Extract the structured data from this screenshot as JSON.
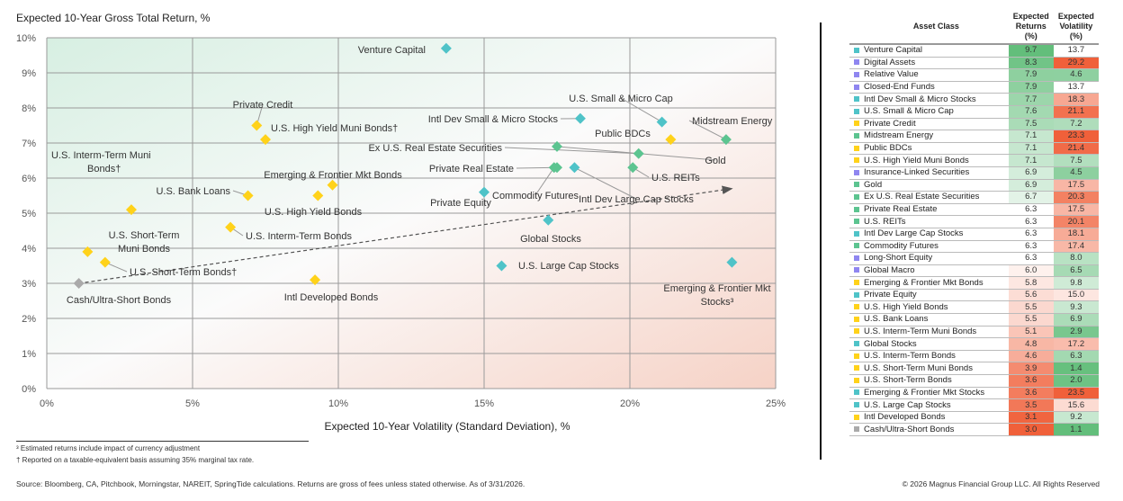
{
  "chart_data": {
    "type": "scatter",
    "title": "Expected 10-Year Gross Total Return, %",
    "xlabel": "Expected 10-Year Volatility (Standard Deviation), %",
    "ylabel": "",
    "xlim": [
      0,
      25
    ],
    "ylim": [
      0,
      10
    ],
    "x_ticks": [
      "0%",
      "5%",
      "10%",
      "15%",
      "20%",
      "25%"
    ],
    "y_ticks": [
      "0%",
      "1%",
      "2%",
      "3%",
      "4%",
      "5%",
      "6%",
      "7%",
      "8%",
      "9%",
      "10%"
    ],
    "grid": true,
    "trend_arrow": {
      "from": [
        1.1,
        3.0
      ],
      "to": [
        23.5,
        5.7
      ]
    },
    "points": [
      {
        "label": "Venture Capital",
        "x": 13.7,
        "y": 9.7,
        "group": "equity"
      },
      {
        "label": "Private Credit",
        "x": 7.2,
        "y": 7.5,
        "group": "fixed"
      },
      {
        "label": "U.S. High Yield Muni Bonds†",
        "x": 7.5,
        "y": 7.1,
        "group": "fixed"
      },
      {
        "label": "Intl Dev Small & Micro Stocks",
        "x": 18.3,
        "y": 7.7,
        "group": "equity"
      },
      {
        "label": "U.S. Small & Micro Cap",
        "x": 21.1,
        "y": 7.6,
        "group": "equity"
      },
      {
        "label": "Midstream Energy",
        "x": 23.3,
        "y": 7.1,
        "group": "real"
      },
      {
        "label": "Public BDCs",
        "x": 21.4,
        "y": 7.1,
        "group": "fixed"
      },
      {
        "label": "Gold",
        "x": 17.5,
        "y": 6.9,
        "group": "real"
      },
      {
        "label": "Ex U.S. Real Estate Securities",
        "x": 20.3,
        "y": 6.7,
        "group": "real"
      },
      {
        "label": "Private Real Estate",
        "x": 17.5,
        "y": 6.3,
        "group": "real"
      },
      {
        "label": "Commodity Futures",
        "x": 17.4,
        "y": 6.3,
        "group": "real"
      },
      {
        "label": "Intl Dev Large Cap Stocks",
        "x": 18.1,
        "y": 6.3,
        "group": "equity"
      },
      {
        "label": "U.S. REITs",
        "x": 20.1,
        "y": 6.3,
        "group": "real"
      },
      {
        "label": "Private Equity",
        "x": 15.0,
        "y": 5.6,
        "group": "equity"
      },
      {
        "label": "Emerging & Frontier Mkt Bonds",
        "x": 9.8,
        "y": 5.8,
        "group": "fixed"
      },
      {
        "label": "U.S. High Yield Bonds",
        "x": 9.3,
        "y": 5.5,
        "group": "fixed"
      },
      {
        "label": "U.S. Bank Loans",
        "x": 6.9,
        "y": 5.5,
        "group": "fixed"
      },
      {
        "label": "U.S. Interm-Term Muni Bonds†",
        "x": 2.9,
        "y": 5.1,
        "group": "fixed"
      },
      {
        "label": "Global Stocks",
        "x": 17.2,
        "y": 4.8,
        "group": "equity"
      },
      {
        "label": "U.S. Interm-Term Bonds",
        "x": 6.3,
        "y": 4.6,
        "group": "fixed"
      },
      {
        "label": "U.S. Short-Term Muni Bonds",
        "x": 1.4,
        "y": 3.9,
        "group": "fixed"
      },
      {
        "label": "U.S. Short-Term Bonds†",
        "x": 2.0,
        "y": 3.6,
        "group": "fixed"
      },
      {
        "label": "Emerging & Frontier Mkt Stocks³",
        "x": 23.5,
        "y": 3.6,
        "group": "equity"
      },
      {
        "label": "U.S. Large Cap Stocks",
        "x": 15.6,
        "y": 3.5,
        "group": "equity"
      },
      {
        "label": "Intl Developed Bonds",
        "x": 9.2,
        "y": 3.1,
        "group": "fixed"
      },
      {
        "label": "Cash/Ultra-Short Bonds",
        "x": 1.1,
        "y": 3.0,
        "group": "cash"
      }
    ]
  },
  "colors": {
    "equity": "#4fc3c8",
    "alternative": "#8f86f0",
    "fixed": "#ffd21a",
    "real": "#5cc490",
    "cash": "#aaaaaa",
    "grid": "#9a9a9a",
    "high": "#63be7b",
    "low": "#f0603a"
  },
  "table": {
    "headers": {
      "asset_class": "Asset Class",
      "returns": "Expected Returns (%)",
      "volatility": "Expected Volatility (%)"
    },
    "rows": [
      {
        "name": "Venture Capital",
        "group": "equity",
        "ret": 9.7,
        "vol": 13.7
      },
      {
        "name": "Digital Assets",
        "group": "alternative",
        "ret": 8.3,
        "vol": 29.2
      },
      {
        "name": "Relative Value",
        "group": "alternative",
        "ret": 7.9,
        "vol": 4.6
      },
      {
        "name": "Closed-End Funds",
        "group": "alternative",
        "ret": 7.9,
        "vol": 13.7
      },
      {
        "name": "Intl Dev Small & Micro Stocks",
        "group": "equity",
        "ret": 7.7,
        "vol": 18.3
      },
      {
        "name": "U.S. Small & Micro Cap",
        "group": "equity",
        "ret": 7.6,
        "vol": 21.1
      },
      {
        "name": "Private Credit",
        "group": "fixed",
        "ret": 7.5,
        "vol": 7.2
      },
      {
        "name": "Midstream Energy",
        "group": "real",
        "ret": 7.1,
        "vol": 23.3
      },
      {
        "name": "Public BDCs",
        "group": "fixed",
        "ret": 7.1,
        "vol": 21.4
      },
      {
        "name": "U.S. High Yield Muni Bonds",
        "group": "fixed",
        "ret": 7.1,
        "vol": 7.5
      },
      {
        "name": "Insurance-Linked Securities",
        "group": "alternative",
        "ret": 6.9,
        "vol": 4.5
      },
      {
        "name": "Gold",
        "group": "real",
        "ret": 6.9,
        "vol": 17.5
      },
      {
        "name": "Ex U.S. Real Estate Securities",
        "group": "real",
        "ret": 6.7,
        "vol": 20.3
      },
      {
        "name": "Private Real Estate",
        "group": "real",
        "ret": 6.3,
        "vol": 17.5
      },
      {
        "name": "U.S. REITs",
        "group": "real",
        "ret": 6.3,
        "vol": 20.1
      },
      {
        "name": "Intl Dev Large Cap Stocks",
        "group": "equity",
        "ret": 6.3,
        "vol": 18.1
      },
      {
        "name": "Commodity Futures",
        "group": "real",
        "ret": 6.3,
        "vol": 17.4
      },
      {
        "name": "Long-Short Equity",
        "group": "alternative",
        "ret": 6.3,
        "vol": 8.0
      },
      {
        "name": "Global Macro",
        "group": "alternative",
        "ret": 6.0,
        "vol": 6.5
      },
      {
        "name": "Emerging & Frontier Mkt Bonds",
        "group": "fixed",
        "ret": 5.8,
        "vol": 9.8
      },
      {
        "name": "Private Equity",
        "group": "equity",
        "ret": 5.6,
        "vol": 15.0
      },
      {
        "name": "U.S. High Yield Bonds",
        "group": "fixed",
        "ret": 5.5,
        "vol": 9.3
      },
      {
        "name": "U.S. Bank Loans",
        "group": "fixed",
        "ret": 5.5,
        "vol": 6.9
      },
      {
        "name": "U.S. Interm-Term Muni Bonds",
        "group": "fixed",
        "ret": 5.1,
        "vol": 2.9
      },
      {
        "name": "Global Stocks",
        "group": "equity",
        "ret": 4.8,
        "vol": 17.2
      },
      {
        "name": "U.S. Interm-Term Bonds",
        "group": "fixed",
        "ret": 4.6,
        "vol": 6.3
      },
      {
        "name": "U.S. Short-Term Muni Bonds",
        "group": "fixed",
        "ret": 3.9,
        "vol": 1.4
      },
      {
        "name": "U.S. Short-Term Bonds",
        "group": "fixed",
        "ret": 3.6,
        "vol": 2.0
      },
      {
        "name": "Emerging & Frontier Mkt Stocks",
        "group": "equity",
        "ret": 3.6,
        "vol": 23.5
      },
      {
        "name": "U.S. Large Cap Stocks",
        "group": "equity",
        "ret": 3.5,
        "vol": 15.6
      },
      {
        "name": "Intl Developed Bonds",
        "group": "fixed",
        "ret": 3.1,
        "vol": 9.2
      },
      {
        "name": "Cash/Ultra-Short Bonds",
        "group": "cash",
        "ret": 3.0,
        "vol": 1.1
      }
    ]
  },
  "footnotes": {
    "note1": "³ Estimated returns include impact of currency adjustment",
    "note2": "† Reported on a taxable-equivalent basis assuming 35% marginal tax rate.",
    "source": "Source: Bloomberg, CA, Pitchbook, Morningstar, NAREIT, SpringTide calculations. Returns are gross of fees unless stated otherwise. As of 3/31/2026.",
    "copyright": "© 2026 Magnus Financial Group LLC. All Rights Reserved"
  }
}
